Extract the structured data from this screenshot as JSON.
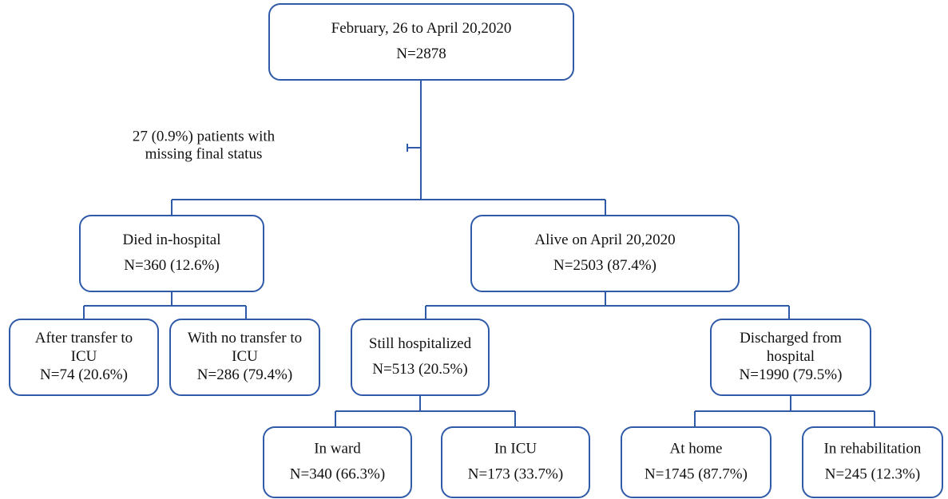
{
  "nodes": [
    {
      "lines": [
        "February, 26 to April 20,2020",
        "N=2878"
      ]
    },
    {
      "lines": [
        "Died in-hospital",
        "N=360 (12.6%)"
      ]
    },
    {
      "lines": [
        "Alive on April 20,2020",
        "N=2503 (87.4%)"
      ]
    },
    {
      "lines": [
        "After transfer to",
        "ICU",
        "N=74 (20.6%)"
      ]
    },
    {
      "lines": [
        "With no transfer to",
        "ICU",
        "N=286 (79.4%)"
      ]
    },
    {
      "lines": [
        "Still hospitalized",
        "N=513 (20.5%)"
      ]
    },
    {
      "lines": [
        "Discharged from",
        "hospital",
        "N=1990 (79.5%)"
      ]
    },
    {
      "lines": [
        "In ward",
        "N=340 (66.3%)"
      ]
    },
    {
      "lines": [
        "In ICU",
        "N=173 (33.7%)"
      ]
    },
    {
      "lines": [
        "At home",
        "N=1745 (87.7%)"
      ]
    },
    {
      "lines": [
        "In rehabilitation",
        "N=245 (12.3%)"
      ]
    }
  ],
  "note": {
    "lines": [
      "27 (0.9%) patients with",
      "missing final status"
    ]
  }
}
